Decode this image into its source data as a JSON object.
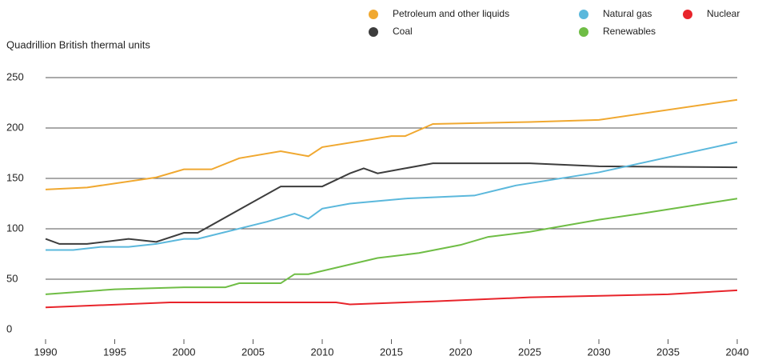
{
  "chart_data": {
    "type": "line",
    "y_label": "Quadrillion British thermal units",
    "xlim": [
      1990,
      2040
    ],
    "xticks": [
      1990,
      1995,
      2000,
      2005,
      2010,
      2015,
      2020,
      2025,
      2030,
      2035,
      2040
    ],
    "ylim": [
      0,
      250
    ],
    "yticks": [
      0,
      50,
      100,
      150,
      200,
      250
    ],
    "grid": true,
    "series": [
      {
        "name": "Petroleum and other liquids",
        "color": "#f0a830",
        "x": [
          1990,
          1993,
          1998,
          2000,
          2002,
          2004,
          2007,
          2009,
          2010,
          2015,
          2016,
          2018,
          2025,
          2030,
          2040
        ],
        "values": [
          139,
          141,
          151,
          159,
          159,
          170,
          177,
          172,
          181,
          192,
          192,
          204,
          206,
          208,
          228
        ]
      },
      {
        "name": "Coal",
        "color": "#3d3d3d",
        "x": [
          1990,
          1991,
          1993,
          1996,
          1998,
          2000,
          2001,
          2007,
          2010,
          2012,
          2013,
          2014,
          2016,
          2018,
          2025,
          2030,
          2040
        ],
        "values": [
          90,
          85,
          85,
          90,
          87,
          96,
          96,
          142,
          142,
          155,
          160,
          155,
          160,
          165,
          165,
          162,
          161
        ]
      },
      {
        "name": "Natural gas",
        "color": "#5bb8dc",
        "x": [
          1990,
          1992,
          1994,
          1996,
          1998,
          2000,
          2001,
          2006,
          2008,
          2009,
          2010,
          2012,
          2016,
          2021,
          2024,
          2030,
          2040
        ],
        "values": [
          79,
          79,
          82,
          82,
          85,
          90,
          90,
          107,
          115,
          110,
          120,
          125,
          130,
          133,
          143,
          156,
          186
        ]
      },
      {
        "name": "Renewables",
        "color": "#6fbd45",
        "x": [
          1990,
          1995,
          2000,
          2003,
          2004,
          2007,
          2008,
          2009,
          2014,
          2017,
          2020,
          2022,
          2025,
          2030,
          2033,
          2040
        ],
        "values": [
          35,
          40,
          42,
          42,
          46,
          46,
          55,
          55,
          71,
          76,
          84,
          92,
          97,
          109,
          115,
          130
        ]
      },
      {
        "name": "Nuclear",
        "color": "#e8242b",
        "x": [
          1990,
          1999,
          2011,
          2012,
          2018,
          2025,
          2035,
          2040
        ],
        "values": [
          22,
          27,
          27,
          25,
          28,
          32,
          35,
          39
        ]
      }
    ]
  }
}
